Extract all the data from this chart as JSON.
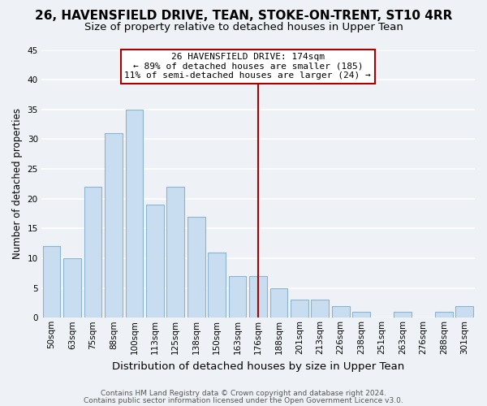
{
  "title": "26, HAVENSFIELD DRIVE, TEAN, STOKE-ON-TRENT, ST10 4RR",
  "subtitle": "Size of property relative to detached houses in Upper Tean",
  "xlabel": "Distribution of detached houses by size in Upper Tean",
  "ylabel": "Number of detached properties",
  "bar_color": "#c8ddef",
  "bar_edge_color": "#8ab4d0",
  "categories": [
    "50sqm",
    "63sqm",
    "75sqm",
    "88sqm",
    "100sqm",
    "113sqm",
    "125sqm",
    "138sqm",
    "150sqm",
    "163sqm",
    "176sqm",
    "188sqm",
    "201sqm",
    "213sqm",
    "226sqm",
    "238sqm",
    "251sqm",
    "263sqm",
    "276sqm",
    "288sqm",
    "301sqm"
  ],
  "values": [
    12,
    10,
    22,
    31,
    35,
    19,
    22,
    17,
    11,
    7,
    7,
    5,
    3,
    3,
    2,
    1,
    0,
    1,
    0,
    1,
    2
  ],
  "ylim": [
    0,
    45
  ],
  "yticks": [
    0,
    5,
    10,
    15,
    20,
    25,
    30,
    35,
    40,
    45
  ],
  "ref_line_index": 10,
  "ref_line_label": "26 HAVENSFIELD DRIVE: 174sqm",
  "annotation_line1": "← 89% of detached houses are smaller (185)",
  "annotation_line2": "11% of semi-detached houses are larger (24) →",
  "annotation_box_color": "#ffffff",
  "annotation_box_edge": "#aa0000",
  "ref_line_color": "#aa0000",
  "footer_line1": "Contains HM Land Registry data © Crown copyright and database right 2024.",
  "footer_line2": "Contains public sector information licensed under the Open Government Licence v3.0.",
  "background_color": "#eef2f7",
  "grid_color": "#ffffff",
  "title_fontsize": 11,
  "subtitle_fontsize": 9.5,
  "xlabel_fontsize": 9.5,
  "ylabel_fontsize": 8.5,
  "tick_fontsize": 7.5,
  "footer_fontsize": 6.5,
  "annot_fontsize": 8
}
